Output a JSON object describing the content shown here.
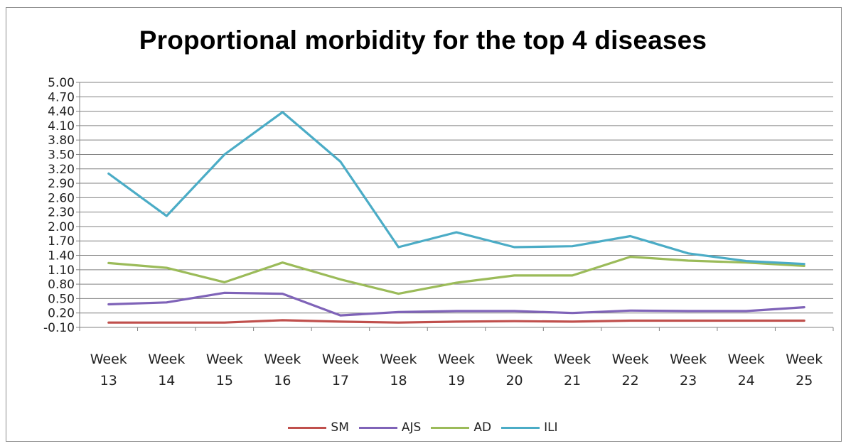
{
  "chart_data": {
    "type": "line",
    "title": "Proportional morbidity for the top 4 diseases",
    "xlabel": "",
    "ylabel": "",
    "categories": [
      "Week 13",
      "Week 14",
      "Week 15",
      "Week 16",
      "Week 17",
      "Week 18",
      "Week 19",
      "Week 20",
      "Week 21",
      "Week 22",
      "Week 23",
      "Week 24",
      "Week 25"
    ],
    "y_ticks": [
      "5.00",
      "4.70",
      "4.40",
      "4.10",
      "3.80",
      "3.50",
      "3.20",
      "2.90",
      "2.60",
      "2.30",
      "2.00",
      "1.70",
      "1.40",
      "1.10",
      "0.80",
      "0.50",
      "0.20",
      "-0.10"
    ],
    "ylim": [
      -0.1,
      5.0
    ],
    "grid": true,
    "legend_position": "bottom",
    "series": [
      {
        "name": "SM",
        "color": "#c0504d",
        "values": [
          0.0,
          0.0,
          0.0,
          0.05,
          0.02,
          0.0,
          0.02,
          0.03,
          0.02,
          0.04,
          0.04,
          0.04,
          0.04
        ]
      },
      {
        "name": "AJS",
        "color": "#7f63b8",
        "values": [
          0.38,
          0.42,
          0.62,
          0.6,
          0.15,
          0.22,
          0.24,
          0.24,
          0.2,
          0.25,
          0.24,
          0.24,
          0.32
        ]
      },
      {
        "name": "AD",
        "color": "#9bbb59",
        "values": [
          1.24,
          1.14,
          0.84,
          1.25,
          0.9,
          0.6,
          0.83,
          0.98,
          0.98,
          1.37,
          1.29,
          1.25,
          1.18
        ]
      },
      {
        "name": "ILI",
        "color": "#4bacc6",
        "values": [
          3.1,
          2.22,
          3.5,
          4.38,
          3.35,
          1.57,
          1.88,
          1.57,
          1.59,
          1.8,
          1.44,
          1.28,
          1.22
        ]
      }
    ]
  }
}
